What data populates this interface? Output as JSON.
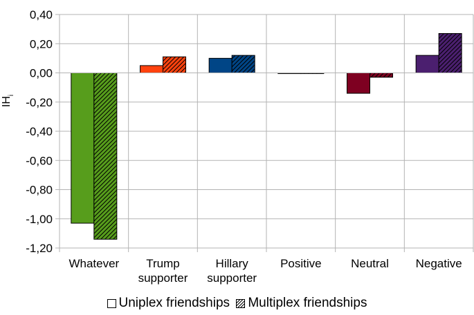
{
  "chart_data": {
    "type": "bar",
    "ylabel": "IH",
    "ylabel_subscript": "i",
    "ylim": [
      -1.2,
      0.4
    ],
    "yticks": [
      0.4,
      0.2,
      0.0,
      -0.2,
      -0.4,
      -0.6,
      -0.8,
      -1.0,
      -1.2
    ],
    "ytick_labels": [
      "0,40",
      "0,20",
      "0,00",
      "-0,20",
      "-0,40",
      "-0,60",
      "-0,80",
      "-1,00",
      "-1,20"
    ],
    "grid": "horizontal",
    "legend_position": "bottom",
    "categories": [
      {
        "label": [
          "Whatever"
        ],
        "color": "#579d1c"
      },
      {
        "label": [
          "Trump",
          "supporter"
        ],
        "color": "#ff420e"
      },
      {
        "label": [
          "Hillary",
          "supporter"
        ],
        "color": "#004586"
      },
      {
        "label": [
          "Positive"
        ],
        "color": "#d9d9d9"
      },
      {
        "label": [
          "Neutral"
        ],
        "color": "#7e0021"
      },
      {
        "label": [
          "Negative"
        ],
        "color": "#4b1f6f"
      }
    ],
    "series": [
      {
        "name": "Uniplex friendships",
        "pattern": "solid",
        "values": [
          -1.03,
          0.05,
          0.1,
          -0.005,
          -0.14,
          0.12
        ]
      },
      {
        "name": "Multiplex friendships",
        "pattern": "hatched",
        "values": [
          -1.14,
          0.11,
          0.12,
          -0.005,
          -0.03,
          0.27
        ]
      }
    ]
  }
}
